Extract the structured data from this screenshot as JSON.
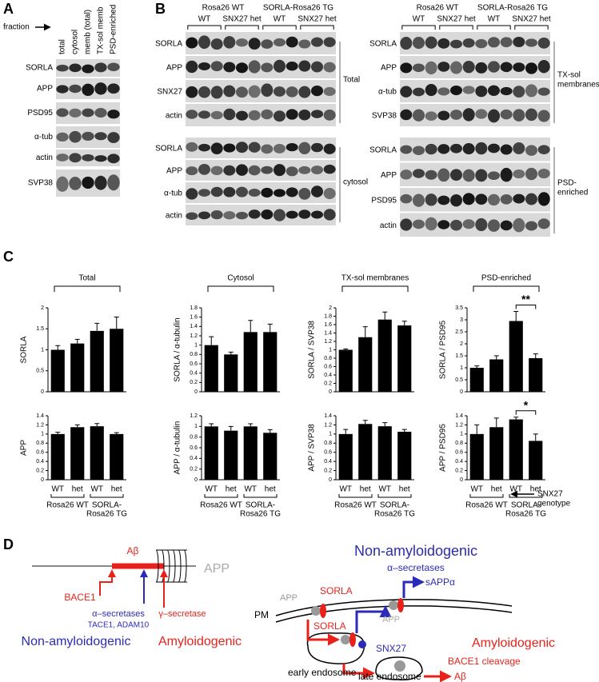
{
  "panel_a": {
    "label": "A",
    "fraction": "fraction",
    "lanes": [
      "total",
      "cytosol",
      "memb (total)",
      "TX-sol memb",
      "PSD-enriched"
    ],
    "rows": [
      "SORLA",
      "APP",
      "PSD95",
      "α-tub",
      "actin",
      "SVP38"
    ]
  },
  "panel_b": {
    "label": "B",
    "blocks": [
      {
        "groups": [
          "Rosa26 WT",
          "SORLA-Rosa26 TG"
        ],
        "subgroups": [
          "WT",
          "SNX27 het",
          "WT",
          "SNX27 het"
        ],
        "fractions": [
          {
            "name": [
              "Total"
            ],
            "rows": [
              "SORLA",
              "APP",
              "SNX27",
              "actin"
            ]
          },
          {
            "name": [
              "cytosol"
            ],
            "rows": [
              "SORLA",
              "APP",
              "α-tub",
              "actin"
            ]
          }
        ]
      },
      {
        "groups": [
          "Rosa26 WT",
          "SORLA-Rosa26 TG"
        ],
        "subgroups": [
          "WT",
          "SNX27 het",
          "WT",
          "SNX27 het"
        ],
        "fractions": [
          {
            "name": [
              "TX-sol",
              "membranes"
            ],
            "rows": [
              "SORLA",
              "APP",
              "α-tub",
              "SVP38"
            ]
          },
          {
            "name": [
              "PSD-",
              "enriched"
            ],
            "rows": [
              "SORLA",
              "APP",
              "PSD95",
              "actin"
            ]
          }
        ]
      }
    ]
  },
  "panel_c": {
    "label": "C",
    "genotype_label": [
      "SNX27",
      "genotype"
    ]
  },
  "chart_data": [
    {
      "type": "bar",
      "title": "Total",
      "y_label": "SORLA",
      "categories": [
        null,
        null,
        null,
        null
      ],
      "values": [
        1.0,
        1.15,
        1.45,
        1.5
      ],
      "errors": [
        0.1,
        0.1,
        0.18,
        0.28
      ],
      "color": "#000000",
      "ylim": [
        0,
        2
      ],
      "yticks": [
        0,
        0.5,
        1,
        1.5,
        2
      ]
    },
    {
      "type": "bar",
      "title": "Cytosol",
      "y_label": "SORLA / α-tubulin",
      "categories": [
        null,
        null,
        null,
        null
      ],
      "values": [
        1.0,
        0.8,
        1.28,
        1.28
      ],
      "errors": [
        0.18,
        0.05,
        0.25,
        0.17
      ],
      "color": "#000000",
      "ylim": [
        0,
        1.8
      ],
      "yticks": [
        0,
        0.2,
        0.4,
        0.6,
        0.8,
        1,
        1.2,
        1.4,
        1.6,
        1.8
      ]
    },
    {
      "type": "bar",
      "title": "TX-sol membranes",
      "y_label": "SORLA / SVP38",
      "categories": [
        null,
        null,
        null,
        null
      ],
      "values": [
        1.0,
        1.3,
        1.72,
        1.58
      ],
      "errors": [
        0.02,
        0.25,
        0.18,
        0.1
      ],
      "color": "#000000",
      "ylim": [
        0,
        2
      ],
      "yticks": [
        0,
        0.2,
        0.4,
        0.6,
        0.8,
        1,
        1.2,
        1.4,
        1.6,
        1.8,
        2
      ]
    },
    {
      "type": "bar",
      "title": "PSD-enriched",
      "y_label": "SORLA / PSD95",
      "categories": [
        null,
        null,
        null,
        null
      ],
      "values": [
        1.0,
        1.35,
        2.95,
        1.4
      ],
      "errors": [
        0.08,
        0.15,
        0.4,
        0.18
      ],
      "color": "#000000",
      "ylim": [
        0,
        3.5
      ],
      "yticks": [
        0,
        0.5,
        1,
        1.5,
        2,
        2.5,
        3,
        3.5
      ],
      "annotation": {
        "text": "**",
        "pair": [
          2,
          3
        ]
      }
    },
    {
      "type": "bar",
      "y_label": "APP",
      "categories": [
        "WT",
        "het",
        "WT",
        "het"
      ],
      "groups": [
        [
          "Rosa26 WT"
        ],
        [
          "SORLA-",
          "Rosa26 TG"
        ]
      ],
      "values": [
        1.0,
        1.15,
        1.17,
        1.0
      ],
      "errors": [
        0.04,
        0.05,
        0.06,
        0.03
      ],
      "color": "#000000",
      "ylim": [
        0,
        1.4
      ],
      "yticks": [
        0,
        0.2,
        0.4,
        0.6,
        0.8,
        1,
        1.2,
        1.4
      ]
    },
    {
      "type": "bar",
      "y_label": "APP / α-tubulin",
      "categories": [
        "WT",
        "het",
        "WT",
        "het"
      ],
      "groups": [
        [
          "Rosa26 WT"
        ],
        [
          "SORLA-",
          "Rosa26 TG"
        ]
      ],
      "values": [
        1.0,
        0.92,
        1.0,
        0.88
      ],
      "errors": [
        0.05,
        0.08,
        0.05,
        0.06
      ],
      "color": "#000000",
      "ylim": [
        0,
        1.2
      ],
      "yticks": [
        0,
        0.2,
        0.4,
        0.6,
        0.8,
        1,
        1.2
      ]
    },
    {
      "type": "bar",
      "y_label": "APP / SVP38",
      "categories": [
        "WT",
        "het",
        "WT",
        "het"
      ],
      "groups": [
        [
          "Rosa26 WT"
        ],
        [
          "SORLA-",
          "Rosa26 TG"
        ]
      ],
      "values": [
        1.0,
        1.22,
        1.17,
        1.05
      ],
      "errors": [
        0.1,
        0.08,
        0.08,
        0.05
      ],
      "color": "#000000",
      "ylim": [
        0,
        1.4
      ],
      "yticks": [
        0,
        0.2,
        0.4,
        0.6,
        0.8,
        1,
        1.2,
        1.4
      ]
    },
    {
      "type": "bar",
      "y_label": "APP / PSD95",
      "categories": [
        "WT",
        "het",
        "WT",
        "het"
      ],
      "groups": [
        [
          "Rosa26 WT"
        ],
        [
          "SORLA-",
          "Rosa26 TG"
        ]
      ],
      "values": [
        1.0,
        1.15,
        1.32,
        0.85
      ],
      "errors": [
        0.2,
        0.2,
        0.05,
        0.15
      ],
      "color": "#000000",
      "ylim": [
        0,
        1.4
      ],
      "yticks": [
        0,
        0.2,
        0.4,
        0.6,
        0.8,
        1,
        1.2,
        1.4
      ],
      "annotation": {
        "text": "*",
        "pair": [
          2,
          3
        ]
      }
    }
  ],
  "panel_d": {
    "label": "D",
    "left": {
      "app": "APP",
      "abeta": "Aβ",
      "bace1": "BACE1",
      "alpha_secretases": "α–secretases",
      "alpha_examples": "TACE1, ADAM10",
      "gamma_secretase": "γ–secretase",
      "non_amyloidogenic": "Non-amyloidogenic",
      "amyloidogenic": "Amyloidogenic"
    },
    "right": {
      "non_amyloidogenic": "Non-amyloidogenic",
      "alpha_secretases": "α–secretases",
      "sappa": "sAPPα",
      "pm": "PM",
      "app_1": "APP",
      "sorla_1": "SORLA",
      "app_2": "APP",
      "sorla_2": "SORLA",
      "snx27": "SNX27",
      "amyloidogenic": "Amyloidogenic",
      "early_endosome": "early endosome",
      "late_endosome": "late endosome",
      "bace1_cleavage": "BACE1 cleavage",
      "abeta": "Aβ"
    }
  }
}
